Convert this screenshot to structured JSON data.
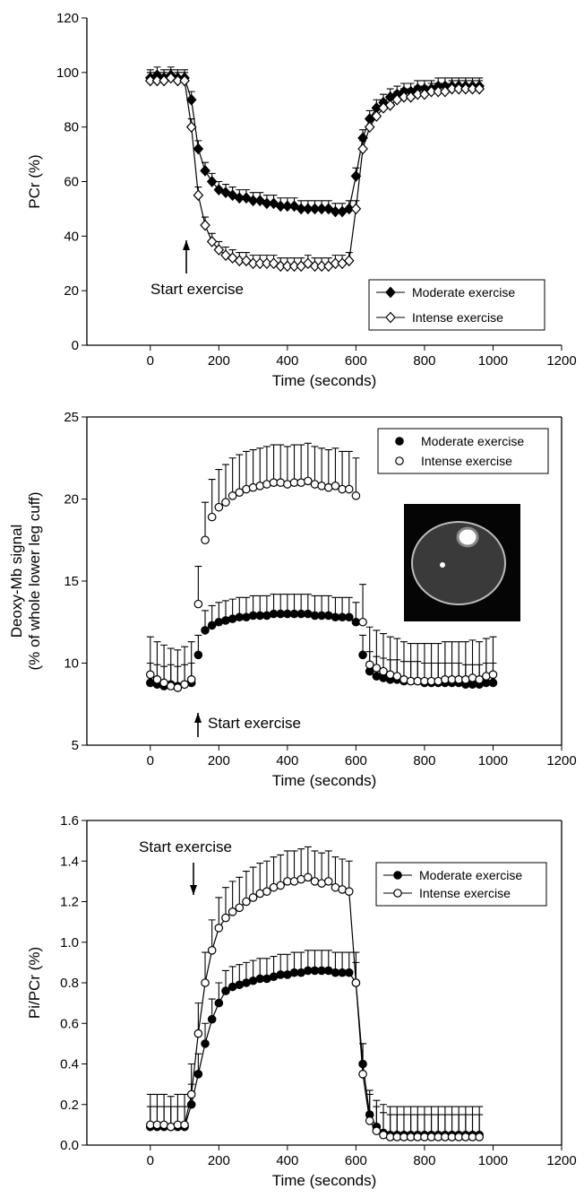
{
  "chart_data": [
    {
      "type": "line",
      "xlabel": "Time (seconds)",
      "ylabel": [
        "PCr (%)"
      ],
      "annotation": "Start exercise",
      "xlim": [
        -185,
        1200
      ],
      "xticks": [
        0,
        200,
        400,
        600,
        800,
        1000,
        1200
      ],
      "ylim": [
        0,
        120
      ],
      "yticks": [
        0,
        20,
        40,
        60,
        80,
        100,
        120
      ],
      "frame": false,
      "legend": "lower right",
      "x": [
        0,
        20,
        40,
        60,
        80,
        100,
        120,
        140,
        160,
        180,
        200,
        220,
        240,
        260,
        280,
        300,
        320,
        340,
        360,
        380,
        400,
        420,
        440,
        460,
        480,
        500,
        520,
        540,
        560,
        580,
        600,
        620,
        640,
        660,
        680,
        700,
        720,
        740,
        760,
        780,
        800,
        820,
        840,
        860,
        880,
        900,
        920,
        940,
        960
      ],
      "series": [
        {
          "name": "Moderate exercise",
          "color": "#000000",
          "marker": "diamond",
          "marker_fill": "#000000",
          "line": true,
          "error": 3,
          "values": [
            98,
            99,
            98,
            99,
            98,
            98,
            90,
            72,
            64,
            60,
            57,
            56,
            55,
            54,
            54,
            53,
            53,
            52,
            52,
            51,
            51,
            51,
            50,
            50,
            50,
            50,
            50,
            49,
            49,
            50,
            62,
            76,
            83,
            87,
            89,
            91,
            92,
            93,
            93,
            94,
            94,
            94,
            95,
            95,
            95,
            95,
            95,
            95,
            95
          ]
        },
        {
          "name": "Intense exercise",
          "color": "#000000",
          "marker": "diamond",
          "marker_fill": "#ffffff",
          "line": true,
          "error": 3,
          "values": [
            97,
            97,
            97,
            98,
            97,
            97,
            80,
            55,
            44,
            38,
            35,
            33,
            32,
            31,
            31,
            30,
            30,
            30,
            30,
            29,
            29,
            29,
            29,
            30,
            29,
            29,
            29,
            30,
            30,
            31,
            50,
            72,
            80,
            84,
            87,
            88,
            90,
            91,
            91,
            92,
            92,
            93,
            93,
            93,
            94,
            94,
            94,
            94,
            94
          ]
        }
      ]
    },
    {
      "type": "scatter",
      "xlabel": "Time (seconds)",
      "ylabel": [
        "Deoxy-Mb signal",
        "(% of whole lower leg cuff)"
      ],
      "annotation": "Start exercise",
      "xlim": [
        -185,
        1200
      ],
      "xticks": [
        0,
        200,
        400,
        600,
        800,
        1000,
        1200
      ],
      "ylim": [
        5,
        25
      ],
      "yticks": [
        5,
        10,
        15,
        20,
        25
      ],
      "frame": true,
      "legend": "upper right",
      "x": [
        0,
        20,
        40,
        60,
        80,
        100,
        120,
        140,
        160,
        180,
        200,
        220,
        240,
        260,
        280,
        300,
        320,
        340,
        360,
        380,
        400,
        420,
        440,
        460,
        480,
        500,
        520,
        540,
        560,
        580,
        600,
        620,
        640,
        660,
        680,
        700,
        720,
        740,
        760,
        780,
        800,
        820,
        840,
        860,
        880,
        900,
        920,
        940,
        960,
        980,
        1000
      ],
      "series": [
        {
          "name": "Moderate exercise",
          "color": "#000000",
          "marker": "circle",
          "marker_fill": "#000000",
          "line": false,
          "error": 1.2,
          "values": [
            8.8,
            8.7,
            8.6,
            8.7,
            8.6,
            8.7,
            8.8,
            10.5,
            12,
            12.3,
            12.5,
            12.6,
            12.7,
            12.8,
            12.8,
            12.9,
            12.9,
            12.9,
            13,
            13,
            13,
            13,
            13,
            13,
            12.9,
            12.9,
            12.9,
            12.8,
            12.8,
            12.8,
            12.5,
            10.5,
            9.5,
            9.2,
            9.1,
            9.0,
            9.0,
            8.9,
            8.9,
            8.9,
            8.8,
            8.8,
            8.8,
            8.8,
            8.8,
            8.8,
            8.7,
            8.7,
            8.7,
            8.8,
            8.8
          ]
        },
        {
          "name": "Intense exercise",
          "color": "#000000",
          "marker": "circle",
          "marker_fill": "#ffffff",
          "line": false,
          "error": 2.3,
          "values": [
            9.3,
            9.0,
            8.8,
            8.6,
            8.5,
            8.7,
            9.0,
            13.6,
            17.5,
            18.9,
            19.5,
            19.8,
            20.2,
            20.4,
            20.6,
            20.7,
            20.8,
            20.9,
            21,
            21,
            20.9,
            21,
            21,
            21.1,
            20.9,
            20.8,
            20.7,
            20.8,
            20.6,
            20.6,
            20.2,
            12.5,
            9.9,
            9.7,
            9.5,
            9.3,
            9.2,
            9.0,
            8.9,
            8.9,
            8.9,
            8.9,
            8.9,
            9.0,
            9.0,
            9.0,
            9.0,
            9.1,
            9.0,
            9.2,
            9.3
          ]
        }
      ]
    },
    {
      "type": "line",
      "xlabel": "Time (seconds)",
      "ylabel": [
        "Pi/PCr (%)"
      ],
      "annotation": "Start exercise",
      "xlim": [
        -185,
        1200
      ],
      "xticks": [
        0,
        200,
        400,
        600,
        800,
        1000,
        1200
      ],
      "ylim": [
        0,
        1.6
      ],
      "yticks": [
        {
          "value": 0,
          "label": "0.0"
        },
        0.2,
        0.4,
        0.6,
        0.8,
        {
          "value": 1,
          "label": "1.0"
        },
        1.2,
        1.4,
        1.6
      ],
      "frame": true,
      "legend": "upper right",
      "x": [
        0,
        20,
        40,
        60,
        80,
        100,
        120,
        140,
        160,
        180,
        200,
        220,
        240,
        260,
        280,
        300,
        320,
        340,
        360,
        380,
        400,
        420,
        440,
        460,
        480,
        500,
        520,
        540,
        560,
        580,
        600,
        620,
        640,
        660,
        680,
        700,
        720,
        740,
        760,
        780,
        800,
        820,
        840,
        860,
        880,
        900,
        920,
        940,
        960
      ],
      "series": [
        {
          "name": "Moderate exercise",
          "color": "#000000",
          "marker": "circle",
          "marker_fill": "#000000",
          "line": true,
          "error": 0.1,
          "values": [
            0.09,
            0.09,
            0.09,
            0.09,
            0.09,
            0.09,
            0.2,
            0.35,
            0.5,
            0.62,
            0.7,
            0.76,
            0.78,
            0.79,
            0.8,
            0.81,
            0.82,
            0.82,
            0.83,
            0.84,
            0.84,
            0.85,
            0.85,
            0.86,
            0.86,
            0.86,
            0.86,
            0.85,
            0.85,
            0.85,
            0.8,
            0.4,
            0.15,
            0.09,
            0.06,
            0.05,
            0.05,
            0.05,
            0.05,
            0.05,
            0.05,
            0.05,
            0.05,
            0.05,
            0.05,
            0.05,
            0.05,
            0.05,
            0.05
          ]
        },
        {
          "name": "Intense exercise",
          "color": "#000000",
          "marker": "circle",
          "marker_fill": "#ffffff",
          "line": true,
          "error": 0.15,
          "values": [
            0.1,
            0.1,
            0.1,
            0.09,
            0.1,
            0.1,
            0.25,
            0.55,
            0.8,
            0.96,
            1.07,
            1.12,
            1.15,
            1.17,
            1.2,
            1.22,
            1.24,
            1.25,
            1.27,
            1.28,
            1.3,
            1.3,
            1.31,
            1.32,
            1.3,
            1.29,
            1.3,
            1.27,
            1.26,
            1.25,
            0.8,
            0.35,
            0.12,
            0.07,
            0.05,
            0.04,
            0.04,
            0.04,
            0.04,
            0.04,
            0.04,
            0.04,
            0.04,
            0.04,
            0.04,
            0.04,
            0.04,
            0.04,
            0.04
          ]
        }
      ]
    }
  ]
}
